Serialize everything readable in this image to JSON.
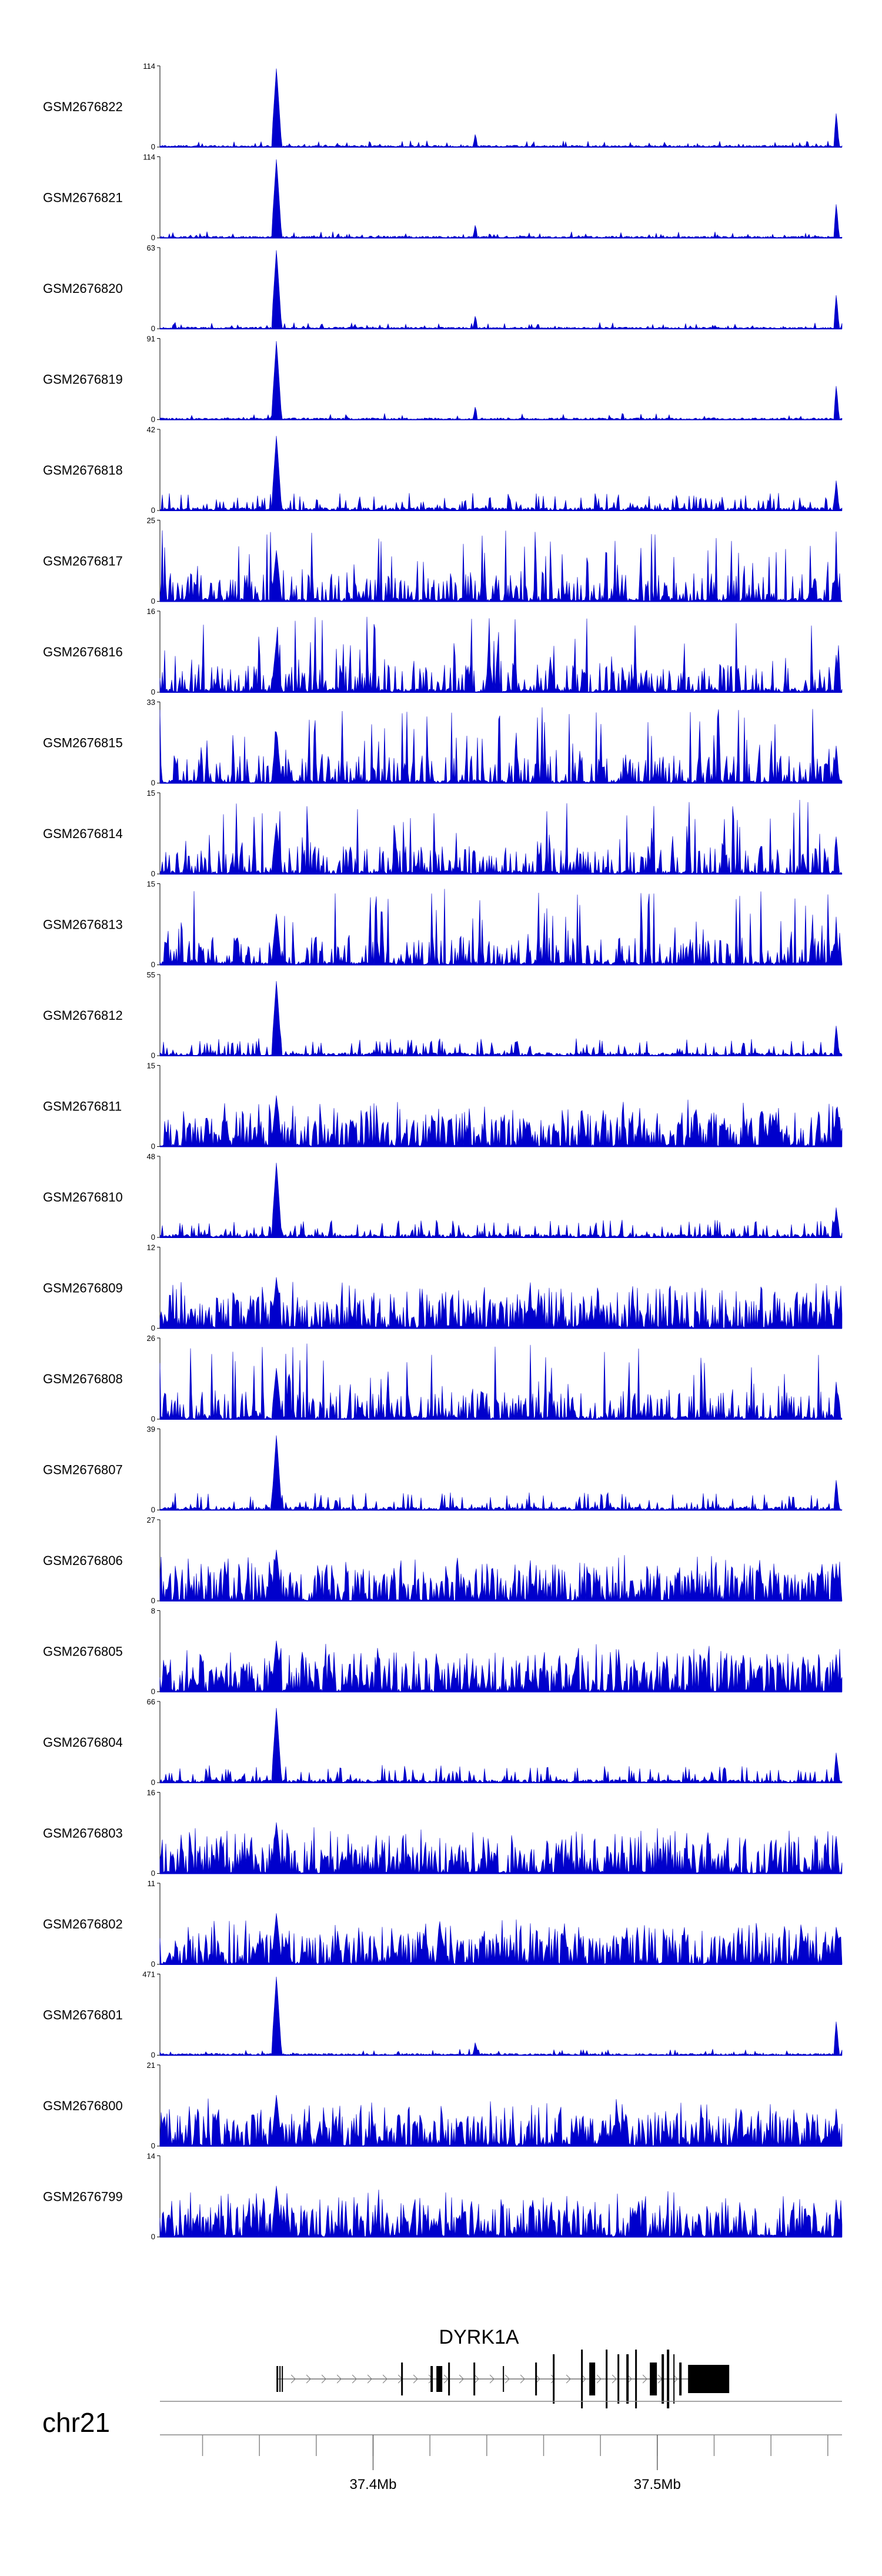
{
  "chart_data": {
    "type": "area",
    "title": "",
    "color": "#0000cc",
    "region": {
      "chromosome": "chr21",
      "start_mb": 37.325,
      "end_mb": 37.565
    },
    "peak_positions_mb": [
      37.366,
      37.436,
      37.563
    ],
    "tracks": [
      {
        "name": "GSM2676822",
        "ymax": "114",
        "ymin": "0",
        "ymax_value": 114,
        "profile": "sharp"
      },
      {
        "name": "GSM2676821",
        "ymax": "114",
        "ymin": "0",
        "ymax_value": 114,
        "profile": "sharp"
      },
      {
        "name": "GSM2676820",
        "ymax": "63",
        "ymin": "0",
        "ymax_value": 63,
        "profile": "sharp"
      },
      {
        "name": "GSM2676819",
        "ymax": "91",
        "ymin": "0",
        "ymax_value": 91,
        "profile": "sharp"
      },
      {
        "name": "GSM2676818",
        "ymax": "42",
        "ymin": "0",
        "ymax_value": 42,
        "profile": "medium"
      },
      {
        "name": "GSM2676817",
        "ymax": "25",
        "ymin": "0",
        "ymax_value": 25,
        "profile": "noisy"
      },
      {
        "name": "GSM2676816",
        "ymax": "16",
        "ymin": "0",
        "ymax_value": 16,
        "profile": "noisy"
      },
      {
        "name": "GSM2676815",
        "ymax": "33",
        "ymin": "0",
        "ymax_value": 33,
        "profile": "noisy"
      },
      {
        "name": "GSM2676814",
        "ymax": "15",
        "ymin": "0",
        "ymax_value": 15,
        "profile": "noisy"
      },
      {
        "name": "GSM2676813",
        "ymax": "15",
        "ymin": "0",
        "ymax_value": 15,
        "profile": "noisy"
      },
      {
        "name": "GSM2676812",
        "ymax": "55",
        "ymin": "0",
        "ymax_value": 55,
        "profile": "medium"
      },
      {
        "name": "GSM2676811",
        "ymax": "15",
        "ymin": "0",
        "ymax_value": 15,
        "profile": "dense"
      },
      {
        "name": "GSM2676810",
        "ymax": "48",
        "ymin": "0",
        "ymax_value": 48,
        "profile": "medium"
      },
      {
        "name": "GSM2676809",
        "ymax": "12",
        "ymin": "0",
        "ymax_value": 12,
        "profile": "dense"
      },
      {
        "name": "GSM2676808",
        "ymax": "26",
        "ymin": "0",
        "ymax_value": 26,
        "profile": "noisy"
      },
      {
        "name": "GSM2676807",
        "ymax": "39",
        "ymin": "0",
        "ymax_value": 39,
        "profile": "medium"
      },
      {
        "name": "GSM2676806",
        "ymax": "27",
        "ymin": "0",
        "ymax_value": 27,
        "profile": "dense"
      },
      {
        "name": "GSM2676805",
        "ymax": "8",
        "ymin": "0",
        "ymax_value": 8,
        "profile": "dense"
      },
      {
        "name": "GSM2676804",
        "ymax": "66",
        "ymin": "0",
        "ymax_value": 66,
        "profile": "medium"
      },
      {
        "name": "GSM2676803",
        "ymax": "16",
        "ymin": "0",
        "ymax_value": 16,
        "profile": "dense"
      },
      {
        "name": "GSM2676802",
        "ymax": "11",
        "ymin": "0",
        "ymax_value": 11,
        "profile": "dense"
      },
      {
        "name": "GSM2676801",
        "ymax": "471",
        "ymin": "0",
        "ymax_value": 471,
        "profile": "sharp"
      },
      {
        "name": "GSM2676800",
        "ymax": "21",
        "ymin": "0",
        "ymax_value": 21,
        "profile": "dense"
      },
      {
        "name": "GSM2676799",
        "ymax": "14",
        "ymin": "0",
        "ymax_value": 14,
        "profile": "dense"
      }
    ],
    "gene": {
      "name": "DYRK1A",
      "start_mb": 37.366,
      "end_mb": 37.523
    },
    "axis": {
      "chromosome_label": "chr21",
      "labeled_ticks": [
        {
          "value_mb": 37.4,
          "label": "37.4Mb"
        },
        {
          "value_mb": 37.5,
          "label": "37.5Mb"
        }
      ],
      "minor_tick_interval_mb": 0.02
    }
  }
}
